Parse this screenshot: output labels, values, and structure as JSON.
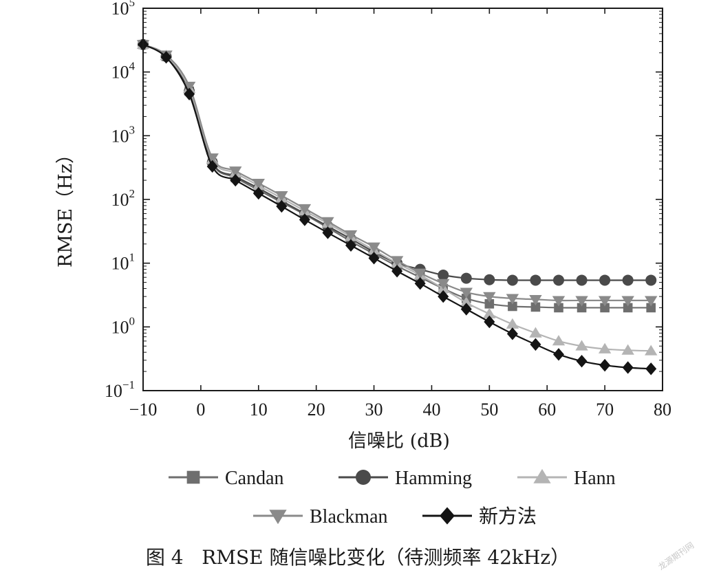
{
  "chart_data": {
    "type": "line",
    "title": "",
    "xlabel": "信噪比 (dB)",
    "ylabel": "RMSE（Hz）",
    "xlim": [
      -10,
      80
    ],
    "ylim": [
      0.1,
      100000
    ],
    "yscale": "log",
    "grid": false,
    "x_ticks": [
      "−10",
      "0",
      "10",
      "20",
      "30",
      "40",
      "50",
      "60",
      "70",
      "80"
    ],
    "y_ticks": [
      {
        "base": "10",
        "exp": "−1"
      },
      {
        "base": "10",
        "exp": "0"
      },
      {
        "base": "10",
        "exp": "1"
      },
      {
        "base": "10",
        "exp": "2"
      },
      {
        "base": "10",
        "exp": "3"
      },
      {
        "base": "10",
        "exp": "4"
      },
      {
        "base": "10",
        "exp": "5"
      }
    ],
    "x": [
      -10,
      -6,
      -2,
      2,
      6,
      10,
      14,
      18,
      22,
      26,
      30,
      34,
      38,
      42,
      46,
      50,
      54,
      58,
      62,
      66,
      70,
      74,
      78
    ],
    "series": [
      {
        "name": "Candan",
        "marker": "square",
        "color": "#6e6e6e",
        "values": [
          27000,
          17500,
          5000,
          370,
          220,
          140,
          90,
          58,
          36,
          22,
          14,
          9,
          6,
          4,
          2.8,
          2.3,
          2.1,
          2.05,
          2.0,
          2.0,
          2.0,
          2.0,
          2.0
        ]
      },
      {
        "name": "Hamming",
        "marker": "circle",
        "color": "#4a4a4a",
        "values": [
          27000,
          17500,
          5000,
          380,
          230,
          150,
          95,
          60,
          38,
          24,
          15,
          10,
          8,
          6.5,
          5.8,
          5.5,
          5.4,
          5.4,
          5.4,
          5.4,
          5.4,
          5.4,
          5.4
        ]
      },
      {
        "name": "Hann",
        "marker": "triangle-up",
        "color": "#b4b4b4",
        "values": [
          27000,
          18000,
          5500,
          420,
          260,
          165,
          105,
          66,
          42,
          26,
          16,
          10,
          6.5,
          4,
          2.4,
          1.6,
          1.1,
          0.8,
          0.6,
          0.5,
          0.45,
          0.43,
          0.42
        ]
      },
      {
        "name": "Blackman",
        "marker": "triangle-down",
        "color": "#8a8a8a",
        "values": [
          27000,
          18500,
          6000,
          450,
          280,
          180,
          115,
          72,
          45,
          28,
          18,
          11,
          7,
          4.8,
          3.5,
          3.0,
          2.8,
          2.7,
          2.6,
          2.6,
          2.6,
          2.6,
          2.6
        ]
      },
      {
        "name": "新方法",
        "marker": "diamond",
        "color": "#141414",
        "values": [
          27000,
          17000,
          4500,
          330,
          200,
          125,
          78,
          48,
          30,
          19,
          12,
          7.5,
          4.8,
          3.0,
          1.9,
          1.2,
          0.78,
          0.53,
          0.37,
          0.29,
          0.25,
          0.23,
          0.22
        ]
      }
    ],
    "legend_position": "bottom"
  },
  "caption": "图 4   RMSE 随信噪比变化（待测频率 42kHz）",
  "watermark": "龙源期刊网"
}
